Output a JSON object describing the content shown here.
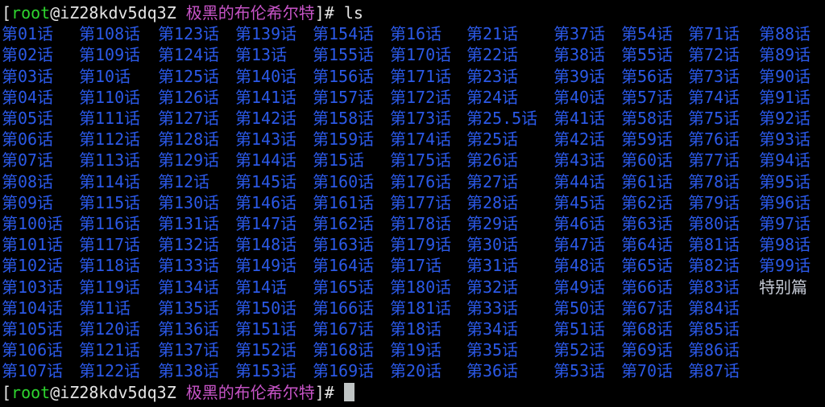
{
  "terminal": {
    "colors": {
      "background": "#000000",
      "foreground": "#e4e4e4",
      "user": "#2ed52e",
      "cwd": "#c653c6",
      "directory": "#2b59e8",
      "file": "#c4c9d4",
      "cursor": "#bfc4c4"
    },
    "prompt": {
      "bracket_open": "[",
      "user": "root",
      "at_host": "@iZ28kdv5dq3Z",
      "cwd": "极黑的布伦希尔特",
      "bracket_close": "]#",
      "command": "ls"
    },
    "listing": {
      "special_file": "特别篇",
      "columns": [
        [
          "第01话",
          "第02话",
          "第03话",
          "第04话",
          "第05话",
          "第06话",
          "第07话",
          "第08话",
          "第09话",
          "第100话",
          "第101话",
          "第102话",
          "第103话",
          "第104话",
          "第105话",
          "第106话",
          "第107话"
        ],
        [
          "第108话",
          "第109话",
          "第10话",
          "第110话",
          "第111话",
          "第112话",
          "第113话",
          "第114话",
          "第115话",
          "第116话",
          "第117话",
          "第118话",
          "第119话",
          "第11话",
          "第120话",
          "第121话",
          "第122话"
        ],
        [
          "第123话",
          "第124话",
          "第125话",
          "第126话",
          "第127话",
          "第128话",
          "第129话",
          "第12话",
          "第130话",
          "第131话",
          "第132话",
          "第133话",
          "第134话",
          "第135话",
          "第136话",
          "第137话",
          "第138话"
        ],
        [
          "第139话",
          "第13话",
          "第140话",
          "第141话",
          "第142话",
          "第143话",
          "第144话",
          "第145话",
          "第146话",
          "第147话",
          "第148话",
          "第149话",
          "第14话",
          "第150话",
          "第151话",
          "第152话",
          "第153话"
        ],
        [
          "第154话",
          "第155话",
          "第156话",
          "第157话",
          "第158话",
          "第159话",
          "第15话",
          "第160话",
          "第161话",
          "第162话",
          "第163话",
          "第164话",
          "第165话",
          "第166话",
          "第167话",
          "第168话",
          "第169话"
        ],
        [
          "第16话",
          "第170话",
          "第171话",
          "第172话",
          "第173话",
          "第174话",
          "第175话",
          "第176话",
          "第177话",
          "第178话",
          "第179话",
          "第17话",
          "第180话",
          "第181话",
          "第18话",
          "第19话",
          "第20话"
        ],
        [
          "第21话",
          "第22话",
          "第23话",
          "第24话",
          "第25.5话",
          "第25话",
          "第26话",
          "第27话",
          "第28话",
          "第29话",
          "第30话",
          "第31话",
          "第32话",
          "第33话",
          "第34话",
          "第35话",
          "第36话"
        ],
        [
          "第37话",
          "第38话",
          "第39话",
          "第40话",
          "第41话",
          "第42话",
          "第43话",
          "第44话",
          "第45话",
          "第46话",
          "第47话",
          "第48话",
          "第49话",
          "第50话",
          "第51话",
          "第52话",
          "第53话"
        ],
        [
          "第54话",
          "第55话",
          "第56话",
          "第57话",
          "第58话",
          "第59话",
          "第60话",
          "第61话",
          "第62话",
          "第63话",
          "第64话",
          "第65话",
          "第66话",
          "第67话",
          "第68话",
          "第69话",
          "第70话"
        ],
        [
          "第71话",
          "第72话",
          "第73话",
          "第74话",
          "第75话",
          "第76话",
          "第77话",
          "第78话",
          "第79话",
          "第80话",
          "第81话",
          "第82话",
          "第83话",
          "第84话",
          "第85话",
          "第86话",
          "第87话"
        ],
        [
          "第88话",
          "第89话",
          "第90话",
          "第91话",
          "第92话",
          "第93话",
          "第94话",
          "第95话",
          "第96话",
          "第97话",
          "第98话",
          "第99话",
          "特别篇"
        ]
      ]
    }
  }
}
